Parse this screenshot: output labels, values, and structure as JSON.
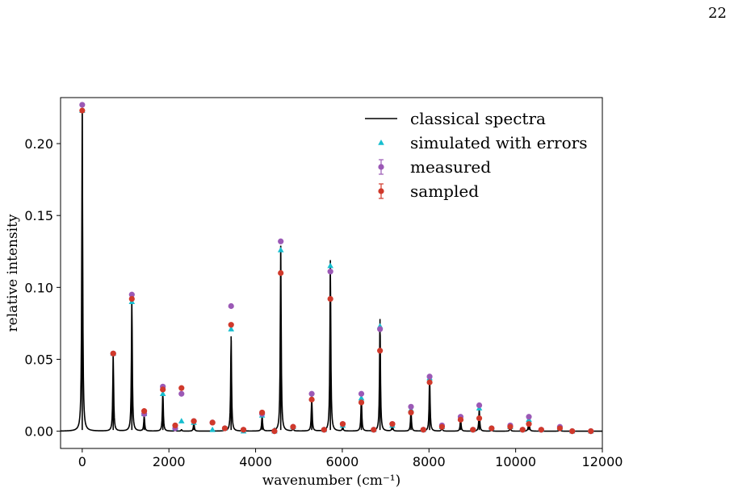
{
  "page_number": "22",
  "chart_data": {
    "type": "line",
    "title": "",
    "xlabel": "wavenumber (cm⁻¹)",
    "ylabel": "relative intensity",
    "xlim": [
      -500,
      12000
    ],
    "ylim": [
      -0.012,
      0.232
    ],
    "xticks": [
      0,
      2000,
      4000,
      6000,
      8000,
      10000,
      12000
    ],
    "xtick_labels": [
      "0",
      "2000",
      "4000",
      "6000",
      "8000",
      "10000",
      "12000"
    ],
    "yticks": [
      0.0,
      0.05,
      0.1,
      0.15,
      0.2
    ],
    "ytick_labels": [
      "0.00",
      "0.05",
      "0.10",
      "0.15",
      "0.20"
    ],
    "grid": false,
    "legend_position": "top-right",
    "colors": {
      "classical": "#000000",
      "simulated": "#17becf",
      "measured": "#9b59b6",
      "sampled": "#d0392b"
    },
    "x": [
      0,
      715,
      1145,
      1430,
      1860,
      2145,
      2290,
      2575,
      3005,
      3290,
      3435,
      3720,
      4150,
      4435,
      4580,
      4865,
      5295,
      5580,
      5725,
      6010,
      6440,
      6725,
      6870,
      7155,
      7585,
      7870,
      8015,
      8300,
      8730,
      9015,
      9160,
      9445,
      9875,
      10160,
      10305,
      10590,
      11020,
      11305,
      11735
    ],
    "series": [
      {
        "name": "classical spectra",
        "style": "line",
        "values": [
          0.223,
          0.053,
          0.092,
          0.011,
          0.028,
          0.001,
          0.001,
          0.006,
          0.001,
          0.001,
          0.066,
          0.001,
          0.011,
          0.001,
          0.129,
          0.002,
          0.024,
          0.001,
          0.119,
          0.003,
          0.024,
          0.001,
          0.078,
          0.005,
          0.015,
          0.001,
          0.039,
          0.003,
          0.009,
          0.001,
          0.016,
          0.001,
          0.003,
          0.001,
          0.009,
          0.001,
          0.002,
          0.0005,
          0.0005
        ]
      },
      {
        "name": "simulated with errors",
        "style": "triangle",
        "values": [
          0.223,
          0.054,
          0.09,
          0.012,
          0.026,
          0.002,
          0.007,
          0.006,
          0.001,
          0.002,
          0.071,
          0.0,
          0.011,
          0.0,
          0.126,
          0.003,
          0.023,
          0.001,
          0.115,
          0.004,
          0.023,
          0.001,
          0.073,
          0.004,
          0.015,
          0.001,
          0.037,
          0.003,
          0.009,
          0.001,
          0.016,
          0.002,
          0.003,
          0.001,
          0.008,
          0.001,
          0.002,
          0.0,
          0.0
        ]
      },
      {
        "name": "measured",
        "style": "circle",
        "values": [
          0.227,
          0.054,
          0.095,
          0.012,
          0.031,
          0.002,
          0.026,
          0.007,
          0.006,
          0.002,
          0.087,
          0.001,
          0.012,
          0.0,
          0.132,
          0.003,
          0.026,
          0.001,
          0.111,
          0.005,
          0.026,
          0.001,
          0.071,
          0.005,
          0.017,
          0.001,
          0.038,
          0.004,
          0.01,
          0.001,
          0.018,
          0.002,
          0.004,
          0.001,
          0.01,
          0.001,
          0.003,
          0.0,
          0.0
        ]
      },
      {
        "name": "sampled",
        "style": "circle",
        "values": [
          0.223,
          0.054,
          0.092,
          0.014,
          0.029,
          0.004,
          0.03,
          0.007,
          0.006,
          0.002,
          0.074,
          0.001,
          0.013,
          0.0,
          0.11,
          0.003,
          0.022,
          0.001,
          0.092,
          0.005,
          0.02,
          0.001,
          0.056,
          0.005,
          0.013,
          0.001,
          0.034,
          0.003,
          0.008,
          0.001,
          0.009,
          0.002,
          0.003,
          0.001,
          0.005,
          0.001,
          0.002,
          0.0,
          0.0
        ]
      }
    ]
  }
}
